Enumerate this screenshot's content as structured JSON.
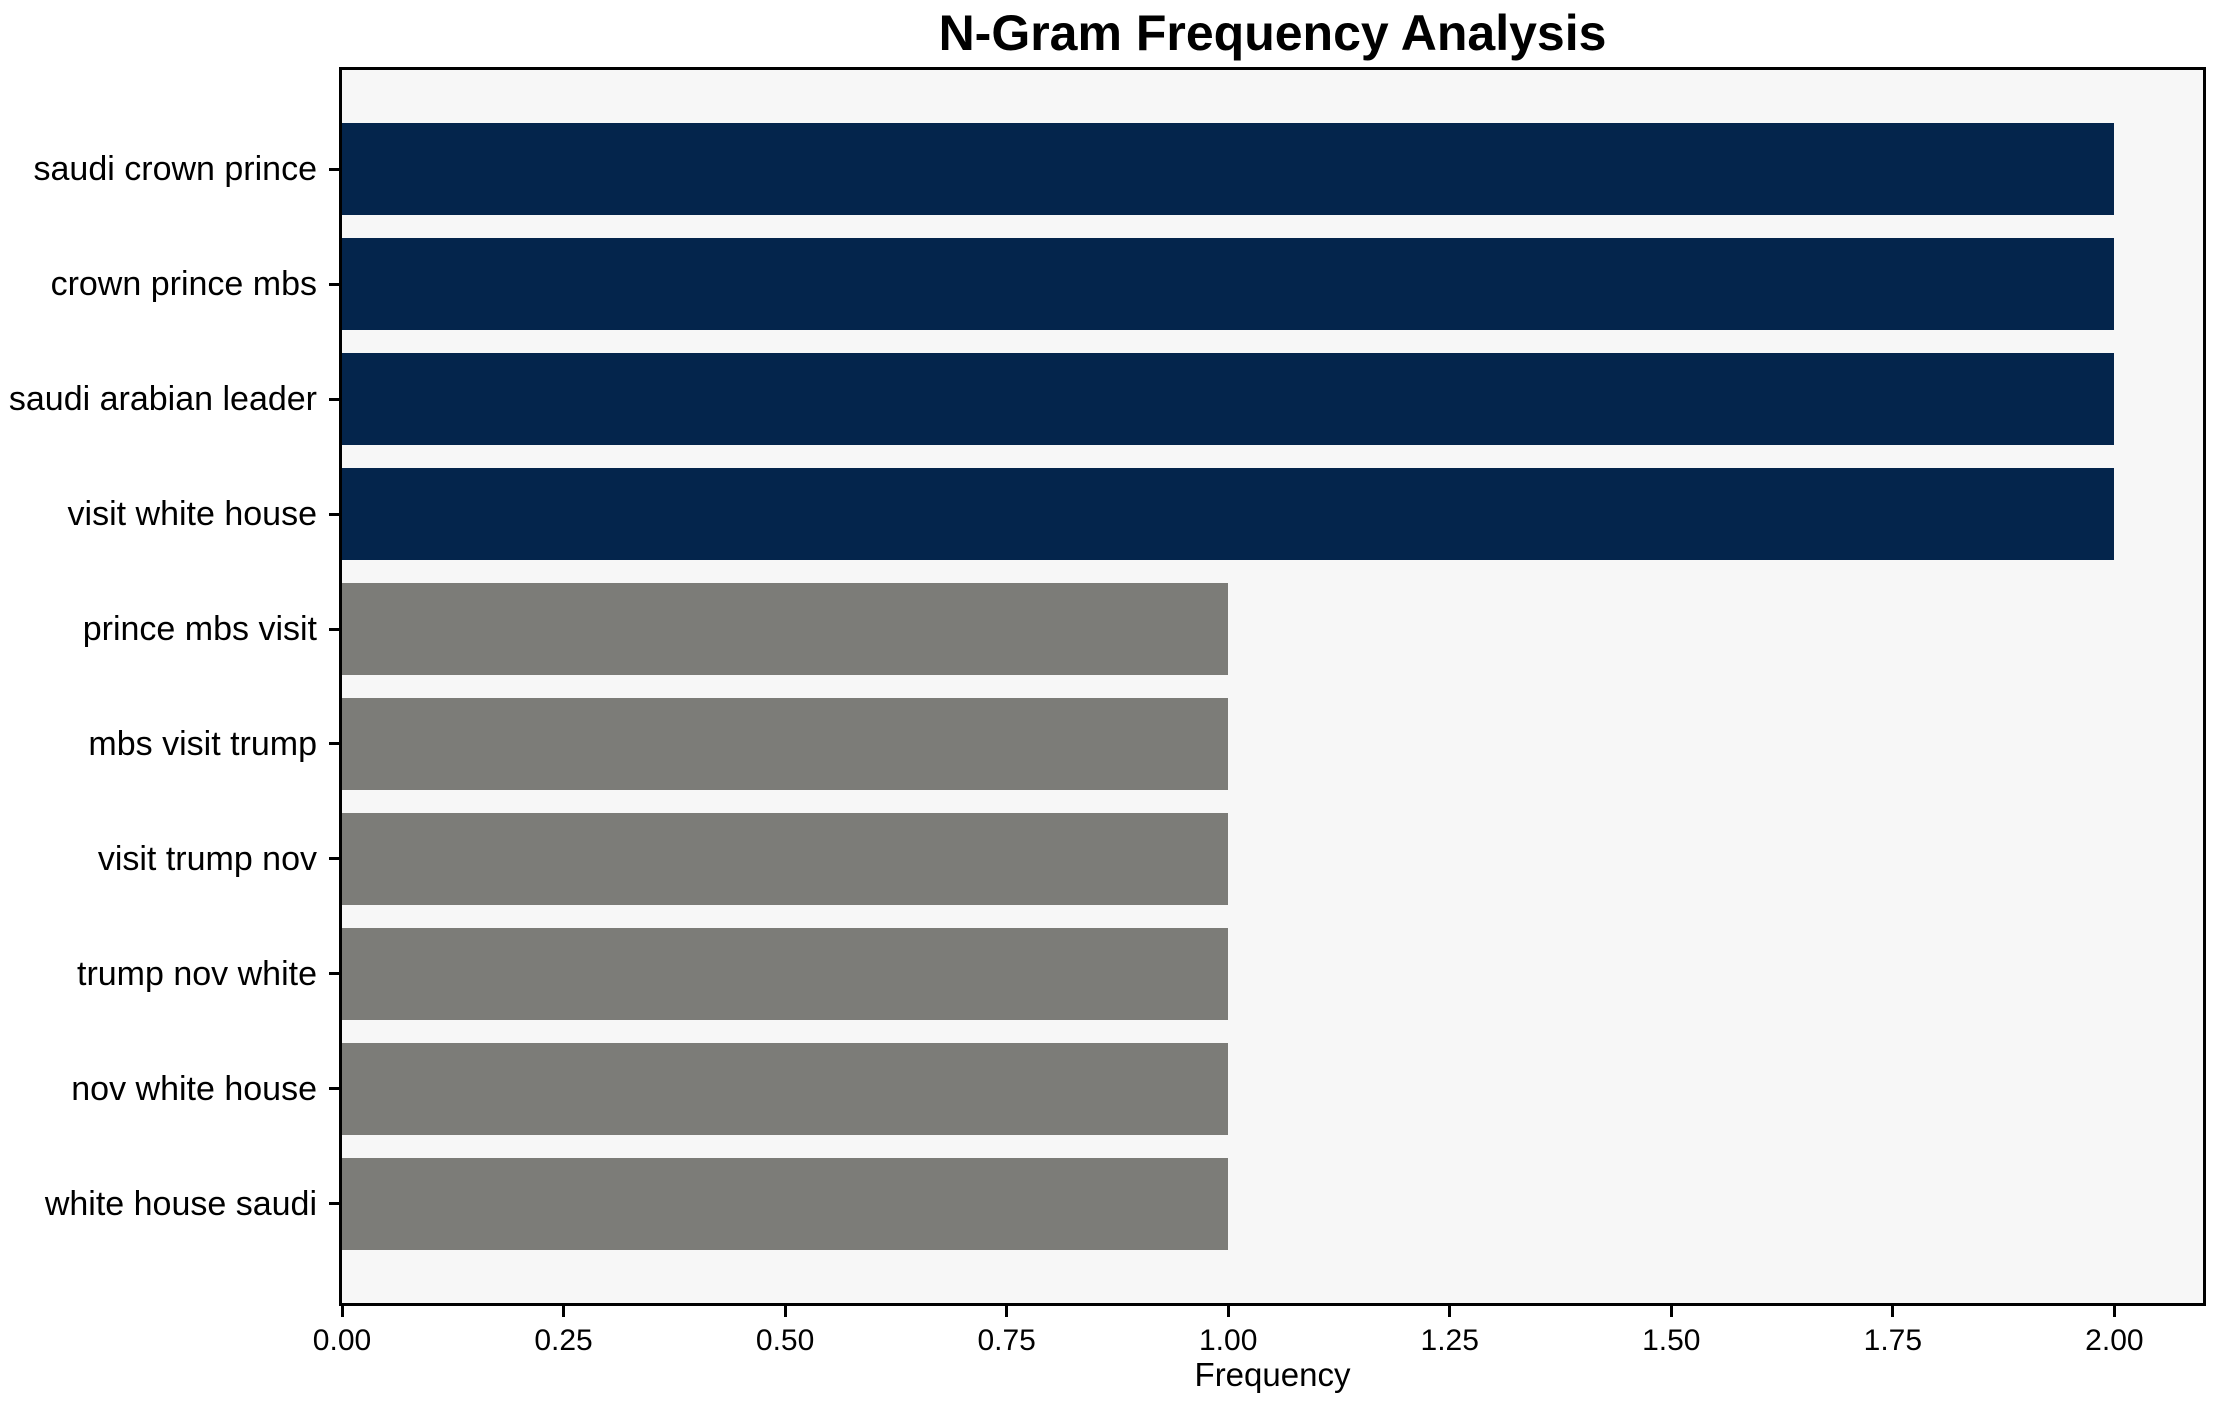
{
  "chart_data": {
    "type": "bar",
    "orientation": "horizontal",
    "title": "N-Gram Frequency Analysis",
    "xlabel": "Frequency",
    "ylabel": "",
    "categories": [
      "saudi crown prince",
      "crown prince mbs",
      "saudi arabian leader",
      "visit white house",
      "prince mbs visit",
      "mbs visit trump",
      "visit trump nov",
      "trump nov white",
      "nov white house",
      "white house saudi"
    ],
    "values": [
      2,
      2,
      2,
      2,
      1,
      1,
      1,
      1,
      1,
      1
    ],
    "bar_colors": [
      "#04254c",
      "#04254c",
      "#04254c",
      "#04254c",
      "#7c7c78",
      "#7c7c78",
      "#7c7c78",
      "#7c7c78",
      "#7c7c78",
      "#7c7c78"
    ],
    "xlim": [
      0,
      2.1
    ],
    "x_tick_labels": [
      "0.00",
      "0.25",
      "0.50",
      "0.75",
      "1.00",
      "1.25",
      "1.50",
      "1.75",
      "2.00"
    ],
    "x_tick_values": [
      0,
      0.25,
      0.5,
      0.75,
      1.0,
      1.25,
      1.5,
      1.75,
      2.0
    ],
    "grid": false,
    "legend": null,
    "colors": {
      "bar_high": "#04254c",
      "bar_low": "#7c7c78",
      "plot_background": "#f7f7f7",
      "figure_background": "#ffffff",
      "spine": "#000000",
      "text": "#000000"
    }
  }
}
